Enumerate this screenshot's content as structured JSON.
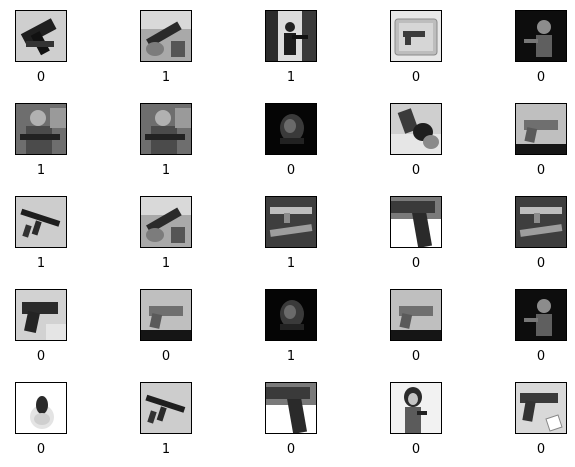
{
  "grid": {
    "rows": 5,
    "cols": 5,
    "cells": [
      {
        "label": "0",
        "scene": "gun-dark"
      },
      {
        "label": "1",
        "scene": "gun-holding"
      },
      {
        "label": "1",
        "scene": "person-silhouette"
      },
      {
        "label": "0",
        "scene": "gun-case"
      },
      {
        "label": "0",
        "scene": "person-dark"
      },
      {
        "label": "1",
        "scene": "soldier"
      },
      {
        "label": "1",
        "scene": "soldier"
      },
      {
        "label": "0",
        "scene": "dark-scene"
      },
      {
        "label": "0",
        "scene": "gun-hand"
      },
      {
        "label": "0",
        "scene": "pistol-bright"
      },
      {
        "label": "1",
        "scene": "rifle"
      },
      {
        "label": "1",
        "scene": "gun-holding"
      },
      {
        "label": "1",
        "scene": "rifle-dark"
      },
      {
        "label": "0",
        "scene": "pistol-closeup"
      },
      {
        "label": "0",
        "scene": "rifle-dark"
      },
      {
        "label": "0",
        "scene": "pistol"
      },
      {
        "label": "0",
        "scene": "pistol-bright"
      },
      {
        "label": "1",
        "scene": "dark-scene"
      },
      {
        "label": "0",
        "scene": "pistol-bright"
      },
      {
        "label": "0",
        "scene": "person-dark"
      },
      {
        "label": "0",
        "scene": "white-object"
      },
      {
        "label": "1",
        "scene": "rifle"
      },
      {
        "label": "0",
        "scene": "pistol-closeup"
      },
      {
        "label": "0",
        "scene": "woman"
      },
      {
        "label": "0",
        "scene": "pistol-tag"
      }
    ]
  },
  "colors": {
    "frame": "#000000",
    "background": "#ffffff"
  }
}
